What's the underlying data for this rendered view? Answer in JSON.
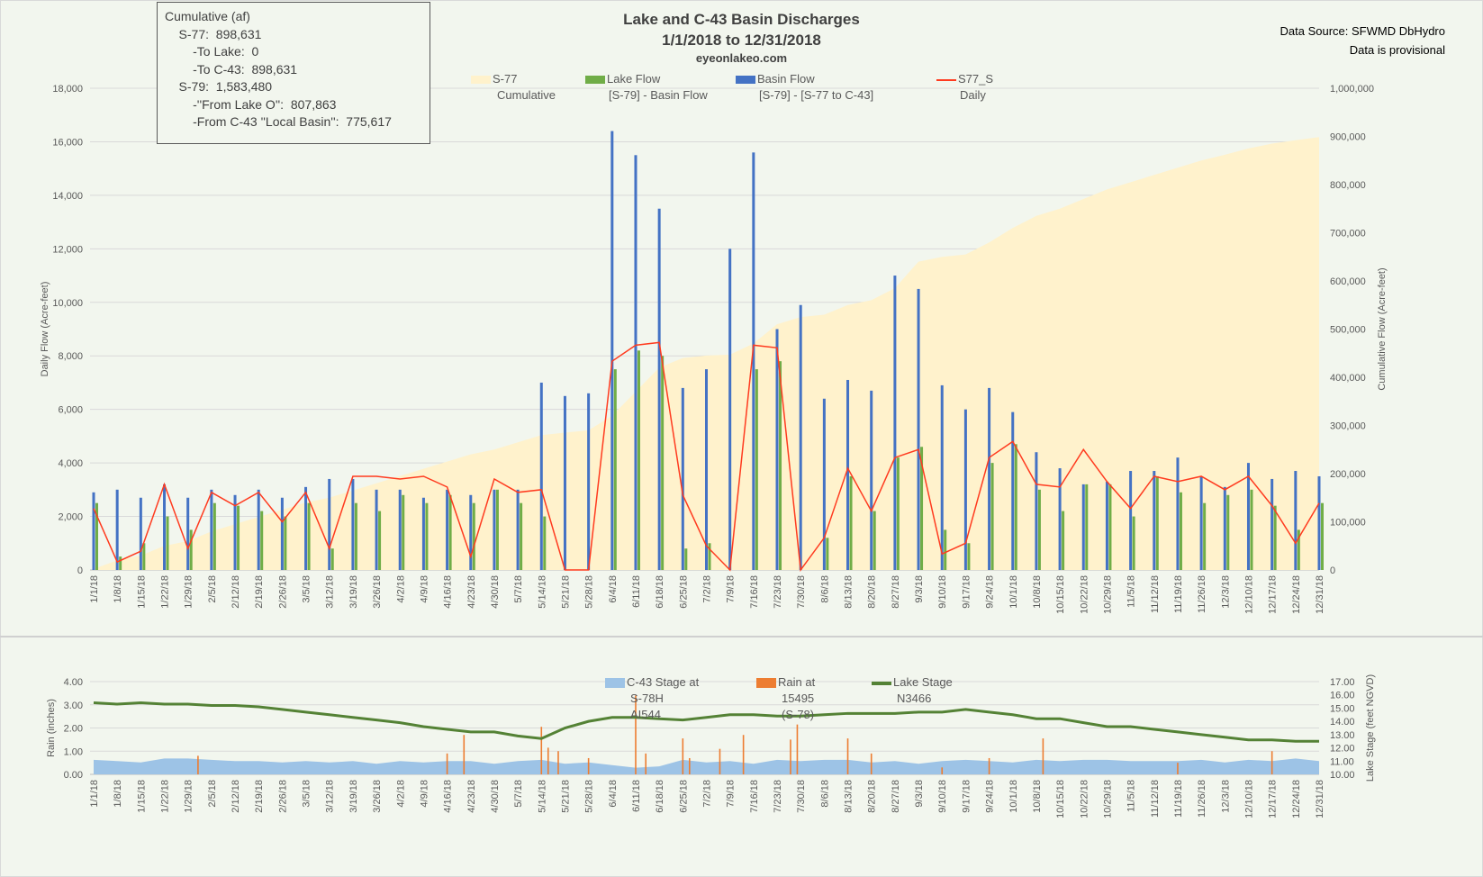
{
  "info_box": {
    "lines": [
      "Cumulative (af)",
      "    S-77:  898,631",
      "        -To Lake:  0",
      "        -To C-43:  898,631",
      "    S-79:  1,583,480",
      "        -''From Lake O'':  807,863",
      "        -From C-43 ''Local Basin'':  775,617"
    ]
  },
  "title": {
    "line1": "Lake and C-43 Basin Discharges",
    "line2": "1/1/2018 to 12/31/2018",
    "line3": "eyeonlakeo.com"
  },
  "source": {
    "line1": "Data Source: SFWMD DbHydro",
    "line2": "Data is provisional"
  },
  "colors": {
    "background": "#f2f6ee",
    "cumulative": "#fff2cc",
    "lake_flow": "#70ad47",
    "basin_flow": "#4472c4",
    "s77_daily": "#ff3b1f",
    "c43_stage": "#9dc3e6",
    "rain": "#ed7d31",
    "lake_stage": "#548235",
    "grid": "#d9d9d9"
  },
  "chart_data": [
    {
      "type": "bar",
      "ylabel": "Daily Flow (Acre-feet)",
      "y2label": "Cumulative Flow (Acre-feet)",
      "ylim": [
        0,
        18000
      ],
      "y2lim": [
        0,
        1000000
      ],
      "y_ticks": [
        "0",
        "2,000",
        "4,000",
        "6,000",
        "8,000",
        "10,000",
        "12,000",
        "14,000",
        "16,000",
        "18,000"
      ],
      "y2_ticks": [
        "0",
        "100,000",
        "200,000",
        "300,000",
        "400,000",
        "500,000",
        "600,000",
        "700,000",
        "800,000",
        "900,000",
        "1,000,000"
      ],
      "grid": true,
      "legend_placement": "top",
      "legend": [
        {
          "key": "cumulative",
          "line1": "S-77",
          "line2": "Cumulative"
        },
        {
          "key": "lake_flow",
          "line1": "Lake Flow",
          "line2": "[S-79] - Basin Flow"
        },
        {
          "key": "basin_flow",
          "line1": "Basin Flow",
          "line2": "[S-79] - [S-77 to C-43]"
        },
        {
          "key": "s77_daily",
          "line1": "S77_S",
          "line2": "Daily"
        }
      ],
      "x": [
        "1/1/18",
        "1/8/18",
        "1/15/18",
        "1/22/18",
        "1/29/18",
        "2/5/18",
        "2/12/18",
        "2/19/18",
        "2/26/18",
        "3/5/18",
        "3/12/18",
        "3/19/18",
        "3/26/18",
        "4/2/18",
        "4/9/18",
        "4/16/18",
        "4/23/18",
        "4/30/18",
        "5/7/18",
        "5/14/18",
        "5/21/18",
        "5/28/18",
        "6/4/18",
        "6/11/18",
        "6/18/18",
        "6/25/18",
        "7/2/18",
        "7/9/18",
        "7/16/18",
        "7/23/18",
        "7/30/18",
        "8/6/18",
        "8/13/18",
        "8/20/18",
        "8/27/18",
        "9/3/18",
        "9/10/18",
        "9/17/18",
        "9/24/18",
        "10/1/18",
        "10/8/18",
        "10/15/18",
        "10/22/18",
        "10/29/18",
        "11/5/18",
        "11/12/18",
        "11/19/18",
        "11/26/18",
        "12/3/18",
        "12/10/18",
        "12/17/18",
        "12/24/18",
        "12/31/18"
      ],
      "series": [
        {
          "name": "Lake Flow",
          "axis": "left",
          "kind": "bar",
          "values": [
            2500,
            500,
            1000,
            2000,
            1500,
            2500,
            2400,
            2200,
            2000,
            2500,
            800,
            2500,
            2200,
            2800,
            2500,
            2800,
            2500,
            3000,
            2500,
            2000,
            0,
            0,
            7500,
            8200,
            8000,
            800,
            1000,
            0,
            7500,
            7800,
            0,
            1200,
            3500,
            2200,
            4200,
            4600,
            1500,
            1000,
            4000,
            4700,
            3000,
            2200,
            3200,
            3200,
            2000,
            3500,
            2900,
            2500,
            2800,
            3000,
            2400,
            1500,
            2500
          ]
        },
        {
          "name": "Basin Flow",
          "axis": "left",
          "kind": "bar",
          "values": [
            2900,
            3000,
            2700,
            3200,
            2700,
            3000,
            2800,
            3000,
            2700,
            3100,
            3400,
            3400,
            3000,
            3000,
            2700,
            3000,
            2800,
            3000,
            3000,
            7000,
            6500,
            6600,
            16400,
            15500,
            13500,
            6800,
            7500,
            12000,
            15600,
            9000,
            9900,
            6400,
            7100,
            6700,
            11000,
            10500,
            6900,
            6000,
            6800,
            5900,
            4400,
            3800,
            3200,
            3300,
            3700,
            3700,
            4200,
            3500,
            3100,
            4000,
            3400,
            3700,
            3500
          ]
        },
        {
          "name": "S77_S Daily",
          "axis": "left",
          "kind": "line",
          "values": [
            2300,
            300,
            700,
            3200,
            800,
            2900,
            2400,
            2900,
            1800,
            2900,
            800,
            3500,
            3500,
            3400,
            3500,
            3100,
            500,
            3400,
            2900,
            3000,
            0,
            0,
            7800,
            8400,
            8500,
            2800,
            900,
            0,
            8400,
            8300,
            0,
            1200,
            3800,
            2200,
            4200,
            4500,
            600,
            1000,
            4200,
            4800,
            3200,
            3100,
            4500,
            3300,
            2300,
            3500,
            3300,
            3500,
            3000,
            3500,
            2400,
            1000,
            2500
          ]
        },
        {
          "name": "S-77 Cumulative",
          "axis": "right",
          "kind": "area",
          "values": [
            2000,
            20000,
            30000,
            50000,
            60000,
            80000,
            95000,
            110000,
            125000,
            140000,
            150000,
            165000,
            180000,
            195000,
            210000,
            225000,
            240000,
            250000,
            265000,
            280000,
            285000,
            290000,
            320000,
            370000,
            420000,
            440000,
            445000,
            447000,
            470000,
            510000,
            525000,
            530000,
            550000,
            560000,
            585000,
            640000,
            650000,
            655000,
            680000,
            710000,
            735000,
            750000,
            770000,
            790000,
            805000,
            820000,
            835000,
            850000,
            862000,
            875000,
            885000,
            892000,
            898631
          ]
        }
      ]
    },
    {
      "type": "line",
      "ylabel": "Rain (inches)",
      "y2label": "Lake Stage (feet NGVD)",
      "ylim": [
        0,
        4
      ],
      "y2lim": [
        10,
        17
      ],
      "y_ticks": [
        "0.00",
        "1.00",
        "2.00",
        "3.00",
        "4.00"
      ],
      "y2_ticks": [
        "10.00",
        "11.00",
        "12.00",
        "13.00",
        "14.00",
        "15.00",
        "16.00",
        "17.00"
      ],
      "grid": true,
      "legend_placement": "top",
      "legend": [
        {
          "key": "c43_stage",
          "lines": [
            "C-43 Stage at",
            "S-78H",
            "AI544"
          ]
        },
        {
          "key": "rain",
          "lines": [
            "Rain at",
            "15495",
            "(S-78)"
          ]
        },
        {
          "key": "lake_stage",
          "lines": [
            "Lake Stage",
            "N3466"
          ]
        }
      ],
      "x": [
        "1/1/18",
        "1/8/18",
        "1/15/18",
        "1/22/18",
        "1/29/18",
        "2/5/18",
        "2/12/18",
        "2/19/18",
        "2/26/18",
        "3/5/18",
        "3/12/18",
        "3/19/18",
        "3/26/18",
        "4/2/18",
        "4/9/18",
        "4/16/18",
        "4/23/18",
        "4/30/18",
        "5/7/18",
        "5/14/18",
        "5/21/18",
        "5/28/18",
        "6/4/18",
        "6/11/18",
        "6/18/18",
        "6/25/18",
        "7/2/18",
        "7/9/18",
        "7/16/18",
        "7/23/18",
        "7/30/18",
        "8/6/18",
        "8/13/18",
        "8/20/18",
        "8/27/18",
        "9/3/18",
        "9/10/18",
        "9/17/18",
        "9/24/18",
        "10/1/18",
        "10/8/18",
        "10/15/18",
        "10/22/18",
        "10/29/18",
        "11/5/18",
        "11/12/18",
        "11/19/18",
        "11/26/18",
        "12/3/18",
        "12/10/18",
        "12/17/18",
        "12/24/18",
        "12/31/18"
      ],
      "series": [
        {
          "name": "C-43 Stage at S-78H AI544",
          "axis": "right",
          "kind": "area",
          "values": [
            11.1,
            11.0,
            10.9,
            11.2,
            11.2,
            11.1,
            11.0,
            11.0,
            10.9,
            11.0,
            10.9,
            11.0,
            10.8,
            11.0,
            10.9,
            11.0,
            11.0,
            10.8,
            11.0,
            11.1,
            10.8,
            10.9,
            10.7,
            10.5,
            10.6,
            11.1,
            10.9,
            11.0,
            10.8,
            11.1,
            11.0,
            11.1,
            11.1,
            10.9,
            11.0,
            10.8,
            11.0,
            11.1,
            11.0,
            10.9,
            11.1,
            11.0,
            11.1,
            11.1,
            11.0,
            11.0,
            11.0,
            11.1,
            10.9,
            11.1,
            11.0,
            11.2,
            11.0
          ]
        },
        {
          "name": "Lake Stage N3466",
          "axis": "right",
          "kind": "line",
          "values": [
            15.4,
            15.3,
            15.4,
            15.3,
            15.3,
            15.2,
            15.2,
            15.1,
            14.9,
            14.7,
            14.5,
            14.3,
            14.1,
            13.9,
            13.6,
            13.4,
            13.2,
            13.2,
            12.9,
            12.7,
            13.5,
            14.0,
            14.3,
            14.3,
            14.2,
            14.1,
            14.3,
            14.5,
            14.5,
            14.4,
            14.4,
            14.5,
            14.6,
            14.6,
            14.6,
            14.7,
            14.7,
            14.9,
            14.7,
            14.5,
            14.2,
            14.2,
            13.9,
            13.6,
            13.6,
            13.4,
            13.2,
            13.0,
            12.8,
            12.6,
            12.6,
            12.5,
            12.5
          ]
        }
      ],
      "rain_events": [
        [
          "2/1/18",
          0.8
        ],
        [
          "4/16/18",
          0.9
        ],
        [
          "4/21/18",
          1.7
        ],
        [
          "5/14/18",
          2.05
        ],
        [
          "5/16/18",
          1.15
        ],
        [
          "5/19/18",
          1.0
        ],
        [
          "5/28/18",
          0.7
        ],
        [
          "6/11/18",
          3.4
        ],
        [
          "6/14/18",
          0.9
        ],
        [
          "6/25/18",
          1.55
        ],
        [
          "6/27/18",
          0.7
        ],
        [
          "7/6/18",
          1.1
        ],
        [
          "7/13/18",
          1.7
        ],
        [
          "7/27/18",
          1.5
        ],
        [
          "7/29/18",
          2.15
        ],
        [
          "8/13/18",
          1.55
        ],
        [
          "8/20/18",
          0.9
        ],
        [
          "9/10/18",
          0.3
        ],
        [
          "9/24/18",
          0.7
        ],
        [
          "10/10/18",
          1.55
        ],
        [
          "11/19/18",
          0.5
        ],
        [
          "12/17/18",
          1.0
        ]
      ]
    }
  ]
}
